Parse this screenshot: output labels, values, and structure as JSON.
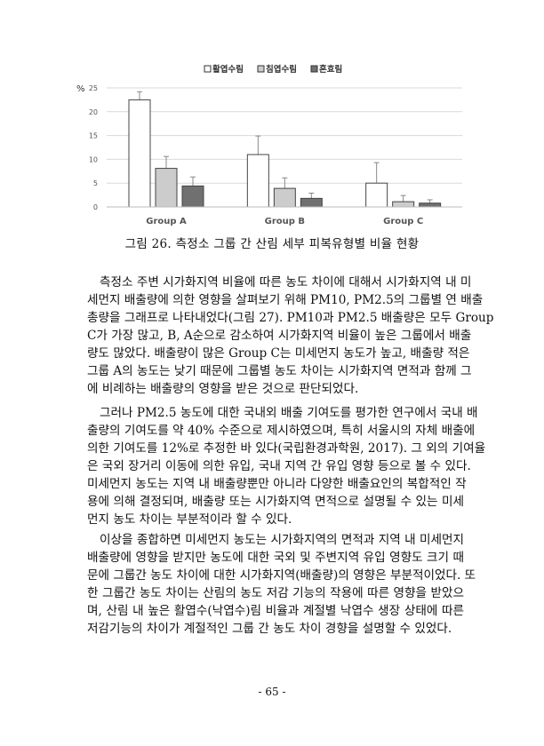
{
  "figure": {
    "caption": "그림 26. 측정소 그룹 간 산림 세부 피복유형별 비율 현황"
  },
  "chart_data": {
    "type": "bar",
    "title": "",
    "ylabel": "%",
    "xlabel": "",
    "ylim": [
      0,
      25
    ],
    "yticks": [
      0,
      5,
      10,
      15,
      20,
      25
    ],
    "grid": true,
    "legend_position": "top",
    "categories": [
      "Group A",
      "Group B",
      "Group C"
    ],
    "series": [
      {
        "name": "활엽수림",
        "color": "#ffffff",
        "values": [
          22.5,
          11.0,
          5.0
        ],
        "error_upper": [
          24.2,
          14.9,
          9.3
        ]
      },
      {
        "name": "침엽수림",
        "color": "#cccccc",
        "values": [
          8.1,
          3.9,
          1.1
        ],
        "error_upper": [
          10.6,
          6.1,
          2.4
        ]
      },
      {
        "name": "혼효림",
        "color": "#707070",
        "values": [
          4.4,
          1.8,
          0.8
        ],
        "error_upper": [
          6.3,
          2.9,
          1.5
        ]
      }
    ]
  },
  "body": {
    "paragraphs": [
      {
        "lines": [
          "측정소 주변 시가화지역 비율에 따른 농도 차이에 대해서 시가화지역 내 미",
          "세먼지 배출량에 의한 영향을 살펴보기 위해 PM10, PM2.5의 그룹별 연 배출",
          "총량을 그래프로 나타내었다(그림 27). PM10과 PM2.5 배출량은 모두 Group",
          "C가 가장 많고, B, A순으로 감소하여 시가화지역 비율이 높은 그룹에서 배출",
          "량도 많았다. 배출량이 많은 Group C는 미세먼지 농도가 높고, 배출량 적은",
          "그룹 A의 농도는 낮기 때문에 그룹별 농도 차이는 시가화지역 면적과 함께 그",
          "에 비례하는 배출량의 영향을 받은 것으로 판단되었다."
        ]
      },
      {
        "lines": [
          "그러나 PM2.5 농도에 대한 국내외 배출 기여도를 평가한 연구에서 국내 배",
          "출량의 기여도를 약 40% 수준으로 제시하였으며, 특히 서울시의 자체 배출에",
          "의한 기여도를 12%로 추정한 바 있다(국립환경과학원, 2017). 그 외의 기여율",
          "은 국외 장거리 이동에 의한 유입, 국내 지역 간 유입 영향 등으로 볼 수 있다.",
          "미세먼지 농도는 지역 내 배출량뿐만 아니라 다양한 배출요인의 복합적인 작",
          "용에 의해 결정되며, 배출량 또는 시가화지역 면적으로 설명될 수 있는 미세",
          "먼지 농도 차이는 부분적이라 할 수 있다."
        ]
      },
      {
        "lines": [
          "이상을 종합하면 미세먼지 농도는 시가화지역의 면적과 지역 내 미세먼지",
          "배출량에 영향을 받지만 농도에 대한 국외 및 주변지역 유입 영향도 크기 때",
          "문에 그룹간 농도 차이에 대한 시가화지역(배출량)의 영향은 부분적이었다. 또",
          "한 그룹간 농도 차이는 산림의 농도 저감 기능의 작용에 따른 영향을 받았으",
          "며, 산림 내 높은 활엽수(낙엽수)림 비율과 계절별 낙엽수 생장 상태에 따른",
          "저감기능의 차이가 계절적인 그룹 간 농도 차이 경향을 설명할 수 있었다."
        ]
      }
    ]
  },
  "footer": {
    "page_number": "- 65 -"
  }
}
